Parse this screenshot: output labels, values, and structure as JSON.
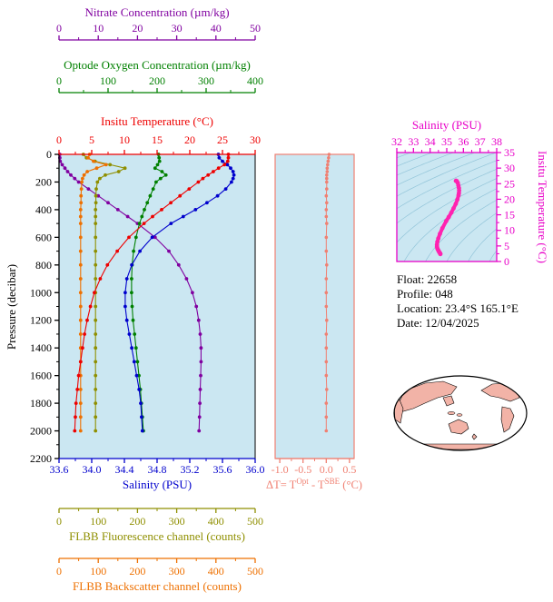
{
  "figure": {
    "info": {
      "float_line": "Float:  22658",
      "profile_line": "Profile:  048",
      "location_line": "Location:  23.4°S  165.1°E",
      "date_line": "Date:  12/04/2025"
    }
  },
  "colors": {
    "nitrate": "#8000a0",
    "oxygen": "#008000",
    "temperature": "#ee0000",
    "salinity": "#0000cd",
    "fluorescence": "#8f8f00",
    "backscatter": "#ee7000",
    "delta_t": "#f08072",
    "ts": "#e800c8",
    "ts_curve": "#ff22b0",
    "plot_bg": "#cbe7f2",
    "contour": "#93c5d9",
    "pressure_axis": "#000000",
    "map_land": "#f2b3a7",
    "map_ocean": "#ffffff",
    "map_outline": "#000000"
  },
  "axes": {
    "nitrate": {
      "label": "Nitrate Concentration (µm/kg)",
      "min": 0,
      "max": 50,
      "ticks": [
        "0",
        "10",
        "20",
        "30",
        "40",
        "50"
      ]
    },
    "oxygen": {
      "label": "Optode Oxygen Concentration (µm/kg)",
      "min": 0,
      "max": 400,
      "ticks": [
        "0",
        "100",
        "200",
        "300",
        "400"
      ]
    },
    "temperature": {
      "label": "Insitu Temperature (°C)",
      "min": 0,
      "max": 30,
      "ticks": [
        "0",
        "5",
        "10",
        "15",
        "20",
        "25",
        "30"
      ]
    },
    "salinity": {
      "label": "Salinity (PSU)",
      "min": 33.6,
      "max": 36.0,
      "ticks": [
        "33.6",
        "34.0",
        "34.4",
        "34.8",
        "35.2",
        "35.6",
        "36.0"
      ]
    },
    "pressure": {
      "label": "Pressure (decibar)",
      "min": 0,
      "max": 2200,
      "ticks": [
        "0",
        "200",
        "400",
        "600",
        "800",
        "1000",
        "1200",
        "1400",
        "1600",
        "1800",
        "2000",
        "2200"
      ]
    },
    "fluorescence": {
      "label": "FLBB Fluorescence channel (counts)",
      "min": 0,
      "max": 500,
      "ticks": [
        "0",
        "100",
        "200",
        "300",
        "400",
        "500"
      ]
    },
    "backscatter": {
      "label": "FLBB Backscatter channel (counts)",
      "min": 0,
      "max": 500,
      "ticks": [
        "0",
        "100",
        "200",
        "300",
        "400",
        "500"
      ]
    },
    "delta_t": {
      "label_parts": {
        "p1": "ΔT= T",
        "sup1": "Opt",
        "p2": " - T",
        "sup2": "SBE",
        "p3": " (°C)"
      },
      "min": -1.0,
      "max": 0.5,
      "ticks": [
        "-1.0",
        "-0.5",
        "0.0",
        "0.5"
      ]
    },
    "ts_salinity": {
      "label": "Salinity (PSU)",
      "min": 32,
      "max": 38,
      "ticks": [
        "32",
        "33",
        "34",
        "35",
        "36",
        "37",
        "38"
      ]
    },
    "ts_temperature": {
      "label": "Insitu Temperature (°C)",
      "min": 0,
      "max": 35,
      "ticks": [
        "0",
        "5",
        "10",
        "15",
        "20",
        "25",
        "30",
        "35"
      ]
    }
  },
  "chart_data": [
    {
      "id": "main-profile",
      "type": "line",
      "title": "",
      "ylabel": "Pressure (decibar)",
      "ylim": [
        0,
        2200
      ],
      "grid": false,
      "pressure_levels": [
        0,
        25,
        50,
        75,
        100,
        125,
        150,
        175,
        200,
        250,
        300,
        350,
        400,
        450,
        500,
        600,
        700,
        800,
        900,
        1000,
        1100,
        1200,
        1300,
        1400,
        1500,
        1600,
        1700,
        1800,
        1900,
        2000
      ],
      "series": [
        {
          "key": "temperature",
          "name": "Insitu Temperature (°C)",
          "axis_min": 0,
          "axis_max": 30,
          "values": [
            25.9,
            25.9,
            25.8,
            25.3,
            24.4,
            23.6,
            22.8,
            22.0,
            21.3,
            19.9,
            18.5,
            17.1,
            15.7,
            14.3,
            13.0,
            10.7,
            8.9,
            7.4,
            6.3,
            5.4,
            4.8,
            4.3,
            3.9,
            3.6,
            3.3,
            3.0,
            2.8,
            2.6,
            2.5,
            2.4
          ]
        },
        {
          "key": "salinity",
          "name": "Salinity (PSU)",
          "axis_min": 33.6,
          "axis_max": 36.0,
          "values": [
            35.55,
            35.56,
            35.6,
            35.66,
            35.7,
            35.73,
            35.74,
            35.73,
            35.71,
            35.64,
            35.54,
            35.41,
            35.27,
            35.12,
            34.97,
            34.74,
            34.59,
            34.49,
            34.43,
            34.41,
            34.41,
            34.43,
            34.46,
            34.49,
            34.52,
            34.55,
            34.58,
            34.6,
            34.61,
            34.62
          ]
        },
        {
          "key": "oxygen",
          "name": "Optode Oxygen Concentration (µm/kg)",
          "axis_min": 0,
          "axis_max": 400,
          "values": [
            203,
            204,
            205,
            201,
            196,
            210,
            218,
            207,
            198,
            192,
            186,
            180,
            174,
            169,
            164,
            157,
            152,
            149,
            148,
            148,
            149,
            151,
            154,
            157,
            160,
            163,
            166,
            168,
            170,
            172
          ]
        },
        {
          "key": "nitrate",
          "name": "Nitrate Concentration (µm/kg)",
          "axis_min": 0,
          "axis_max": 50,
          "values": [
            0.2,
            0.2,
            0.3,
            0.8,
            1.5,
            2.2,
            3.0,
            4.0,
            5.0,
            7.5,
            10.0,
            12.5,
            15.0,
            17.5,
            20.0,
            24.5,
            28.0,
            30.5,
            32.5,
            34.0,
            35.0,
            35.6,
            36.0,
            36.2,
            36.2,
            36.1,
            36.0,
            35.9,
            35.8,
            35.7
          ]
        },
        {
          "key": "fluorescence",
          "name": "FLBB Fluorescence channel (counts)",
          "axis_min": 0,
          "axis_max": 500,
          "values": [
            62,
            70,
            92,
            130,
            168,
            152,
            118,
            104,
            98,
            95,
            94,
            94,
            93,
            93,
            93,
            93,
            93,
            93,
            93,
            93,
            93,
            93,
            93,
            93,
            93,
            93,
            93,
            93,
            93,
            93
          ]
        },
        {
          "key": "backscatter",
          "name": "FLBB Backscatter channel (counts)",
          "axis_min": 0,
          "axis_max": 500,
          "values": [
            78,
            74,
            88,
            120,
            96,
            72,
            64,
            60,
            58,
            57,
            56,
            56,
            55,
            55,
            55,
            55,
            55,
            55,
            55,
            55,
            55,
            55,
            55,
            55,
            55,
            55,
            55,
            55,
            55,
            55
          ]
        }
      ]
    },
    {
      "id": "delta-t",
      "type": "line",
      "xlabel": "ΔT= TOpt - TSBE (°C)",
      "xlim": [
        -1.0,
        0.5
      ],
      "uses_pressure_levels_of": "main-profile",
      "values": [
        0.06,
        0.05,
        0.04,
        0.03,
        0.02,
        0.02,
        0.01,
        0.01,
        0.01,
        0.01,
        0.0,
        0.01,
        0.0,
        0.0,
        0.01,
        0.0,
        0.0,
        0.01,
        0.0,
        0.0,
        0.0,
        0.01,
        0.0,
        0.0,
        0.0,
        0.0,
        0.01,
        0.0,
        0.0,
        0.0
      ]
    },
    {
      "id": "ts-diagram",
      "type": "line",
      "xlabel": "Salinity (PSU)",
      "ylabel": "Insitu Temperature (°C)",
      "xlim": [
        32,
        38
      ],
      "ylim": [
        0,
        35
      ],
      "curve_points_source": "salinity and temperature series of main-profile",
      "isopycnal_contours": {
        "from": 18,
        "to": 30,
        "step": 1
      }
    }
  ]
}
